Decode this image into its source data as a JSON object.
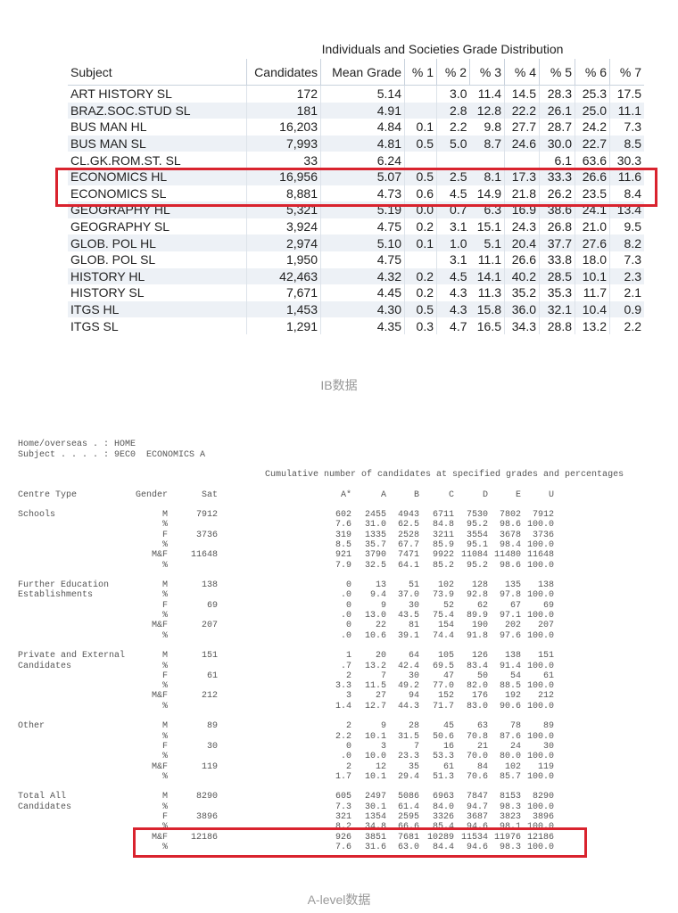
{
  "ib": {
    "title": "Individuals and Societies Grade Distribution",
    "columns": [
      "Subject",
      "Candidates",
      "Mean Grade",
      "% 1",
      "% 2",
      "% 3",
      "% 4",
      "% 5",
      "% 6",
      "% 7"
    ],
    "rows": [
      [
        "ART HISTORY SL",
        "172",
        "5.14",
        "",
        "3.0",
        "11.4",
        "14.5",
        "28.3",
        "25.3",
        "17.5"
      ],
      [
        "BRAZ.SOC.STUD SL",
        "181",
        "4.91",
        "",
        "2.8",
        "12.8",
        "22.2",
        "26.1",
        "25.0",
        "11.1"
      ],
      [
        "BUS MAN HL",
        "16,203",
        "4.84",
        "0.1",
        "2.2",
        "9.8",
        "27.7",
        "28.7",
        "24.2",
        "7.3"
      ],
      [
        "BUS MAN SL",
        "7,993",
        "4.81",
        "0.5",
        "5.0",
        "8.7",
        "24.6",
        "30.0",
        "22.7",
        "8.5"
      ],
      [
        "CL.GK.ROM.ST. SL",
        "33",
        "6.24",
        "",
        "",
        "",
        "",
        "6.1",
        "63.6",
        "30.3"
      ],
      [
        "ECONOMICS HL",
        "16,956",
        "5.07",
        "0.5",
        "2.5",
        "8.1",
        "17.3",
        "33.3",
        "26.6",
        "11.6"
      ],
      [
        "ECONOMICS SL",
        "8,881",
        "4.73",
        "0.6",
        "4.5",
        "14.9",
        "21.8",
        "26.2",
        "23.5",
        "8.4"
      ],
      [
        "GEOGRAPHY HL",
        "5,321",
        "5.19",
        "0.0",
        "0.7",
        "6.3",
        "16.9",
        "38.6",
        "24.1",
        "13.4"
      ],
      [
        "GEOGRAPHY SL",
        "3,924",
        "4.75",
        "0.2",
        "3.1",
        "15.1",
        "24.3",
        "26.8",
        "21.0",
        "9.5"
      ],
      [
        "GLOB. POL HL",
        "2,974",
        "5.10",
        "0.1",
        "1.0",
        "5.1",
        "20.4",
        "37.7",
        "27.6",
        "8.2"
      ],
      [
        "GLOB. POL SL",
        "1,950",
        "4.75",
        "",
        "3.1",
        "11.1",
        "26.6",
        "33.8",
        "18.0",
        "7.3"
      ],
      [
        "HISTORY HL",
        "42,463",
        "4.32",
        "0.2",
        "4.5",
        "14.1",
        "40.2",
        "28.5",
        "10.1",
        "2.3"
      ],
      [
        "HISTORY SL",
        "7,671",
        "4.45",
        "0.2",
        "4.3",
        "11.3",
        "35.2",
        "35.3",
        "11.7",
        "2.1"
      ],
      [
        "ITGS HL",
        "1,453",
        "4.30",
        "0.5",
        "4.3",
        "15.8",
        "36.0",
        "32.1",
        "10.4",
        "0.9"
      ],
      [
        "ITGS SL",
        "1,291",
        "4.35",
        "0.3",
        "4.7",
        "16.5",
        "34.3",
        "28.8",
        "13.2",
        "2.2"
      ]
    ],
    "caption": "IB数据",
    "highlight_color": "#d9232e"
  },
  "alevel": {
    "home_line": "Home/overseas . : HOME",
    "subject_line": "Subject . . . . : 9EC0  ECONOMICS A",
    "cumulative_heading": "Cumulative number of candidates at specified grades and percentages",
    "headers": [
      "Centre Type",
      "Gender",
      "Sat",
      "A*",
      "A",
      "B",
      "C",
      "D",
      "E",
      "U"
    ],
    "groups": [
      {
        "name": [
          "Schools"
        ],
        "rows": [
          [
            "M",
            "7912",
            "602",
            "2455",
            "4943",
            "6711",
            "7530",
            "7802",
            "7912"
          ],
          [
            "%",
            "",
            "7.6",
            "31.0",
            "62.5",
            "84.8",
            "95.2",
            "98.6",
            "100.0"
          ],
          [
            "F",
            "3736",
            "319",
            "1335",
            "2528",
            "3211",
            "3554",
            "3678",
            "3736"
          ],
          [
            "%",
            "",
            "8.5",
            "35.7",
            "67.7",
            "85.9",
            "95.1",
            "98.4",
            "100.0"
          ],
          [
            "M&F",
            "11648",
            "921",
            "3790",
            "7471",
            "9922",
            "11084",
            "11480",
            "11648"
          ],
          [
            "%",
            "",
            "7.9",
            "32.5",
            "64.1",
            "85.2",
            "95.2",
            "98.6",
            "100.0"
          ]
        ]
      },
      {
        "name": [
          "Further Education",
          "Establishments"
        ],
        "rows": [
          [
            "M",
            "138",
            "0",
            "13",
            "51",
            "102",
            "128",
            "135",
            "138"
          ],
          [
            "%",
            "",
            ".0",
            "9.4",
            "37.0",
            "73.9",
            "92.8",
            "97.8",
            "100.0"
          ],
          [
            "F",
            "69",
            "0",
            "9",
            "30",
            "52",
            "62",
            "67",
            "69"
          ],
          [
            "%",
            "",
            ".0",
            "13.0",
            "43.5",
            "75.4",
            "89.9",
            "97.1",
            "100.0"
          ],
          [
            "M&F",
            "207",
            "0",
            "22",
            "81",
            "154",
            "190",
            "202",
            "207"
          ],
          [
            "%",
            "",
            ".0",
            "10.6",
            "39.1",
            "74.4",
            "91.8",
            "97.6",
            "100.0"
          ]
        ]
      },
      {
        "name": [
          "Private and External",
          "Candidates"
        ],
        "rows": [
          [
            "M",
            "151",
            "1",
            "20",
            "64",
            "105",
            "126",
            "138",
            "151"
          ],
          [
            "%",
            "",
            ".7",
            "13.2",
            "42.4",
            "69.5",
            "83.4",
            "91.4",
            "100.0"
          ],
          [
            "F",
            "61",
            "2",
            "7",
            "30",
            "47",
            "50",
            "54",
            "61"
          ],
          [
            "%",
            "",
            "3.3",
            "11.5",
            "49.2",
            "77.0",
            "82.0",
            "88.5",
            "100.0"
          ],
          [
            "M&F",
            "212",
            "3",
            "27",
            "94",
            "152",
            "176",
            "192",
            "212"
          ],
          [
            "%",
            "",
            "1.4",
            "12.7",
            "44.3",
            "71.7",
            "83.0",
            "90.6",
            "100.0"
          ]
        ]
      },
      {
        "name": [
          "Other"
        ],
        "rows": [
          [
            "M",
            "89",
            "2",
            "9",
            "28",
            "45",
            "63",
            "78",
            "89"
          ],
          [
            "%",
            "",
            "2.2",
            "10.1",
            "31.5",
            "50.6",
            "70.8",
            "87.6",
            "100.0"
          ],
          [
            "F",
            "30",
            "0",
            "3",
            "7",
            "16",
            "21",
            "24",
            "30"
          ],
          [
            "%",
            "",
            ".0",
            "10.0",
            "23.3",
            "53.3",
            "70.0",
            "80.0",
            "100.0"
          ],
          [
            "M&F",
            "119",
            "2",
            "12",
            "35",
            "61",
            "84",
            "102",
            "119"
          ],
          [
            "%",
            "",
            "1.7",
            "10.1",
            "29.4",
            "51.3",
            "70.6",
            "85.7",
            "100.0"
          ]
        ]
      },
      {
        "name": [
          "Total All",
          "Candidates"
        ],
        "rows": [
          [
            "M",
            "8290",
            "605",
            "2497",
            "5086",
            "6963",
            "7847",
            "8153",
            "8290"
          ],
          [
            "%",
            "",
            "7.3",
            "30.1",
            "61.4",
            "84.0",
            "94.7",
            "98.3",
            "100.0"
          ],
          [
            "F",
            "3896",
            "321",
            "1354",
            "2595",
            "3326",
            "3687",
            "3823",
            "3896"
          ],
          [
            "%",
            "",
            "8.2",
            "34.8",
            "66.6",
            "85.4",
            "94.6",
            "98.1",
            "100.0"
          ],
          [
            "M&F",
            "12186",
            "926",
            "3851",
            "7681",
            "10289",
            "11534",
            "11976",
            "12186"
          ],
          [
            "%",
            "",
            "7.6",
            "31.6",
            "63.0",
            "84.4",
            "94.6",
            "98.3",
            "100.0"
          ]
        ]
      }
    ],
    "caption": "A-level数据"
  }
}
